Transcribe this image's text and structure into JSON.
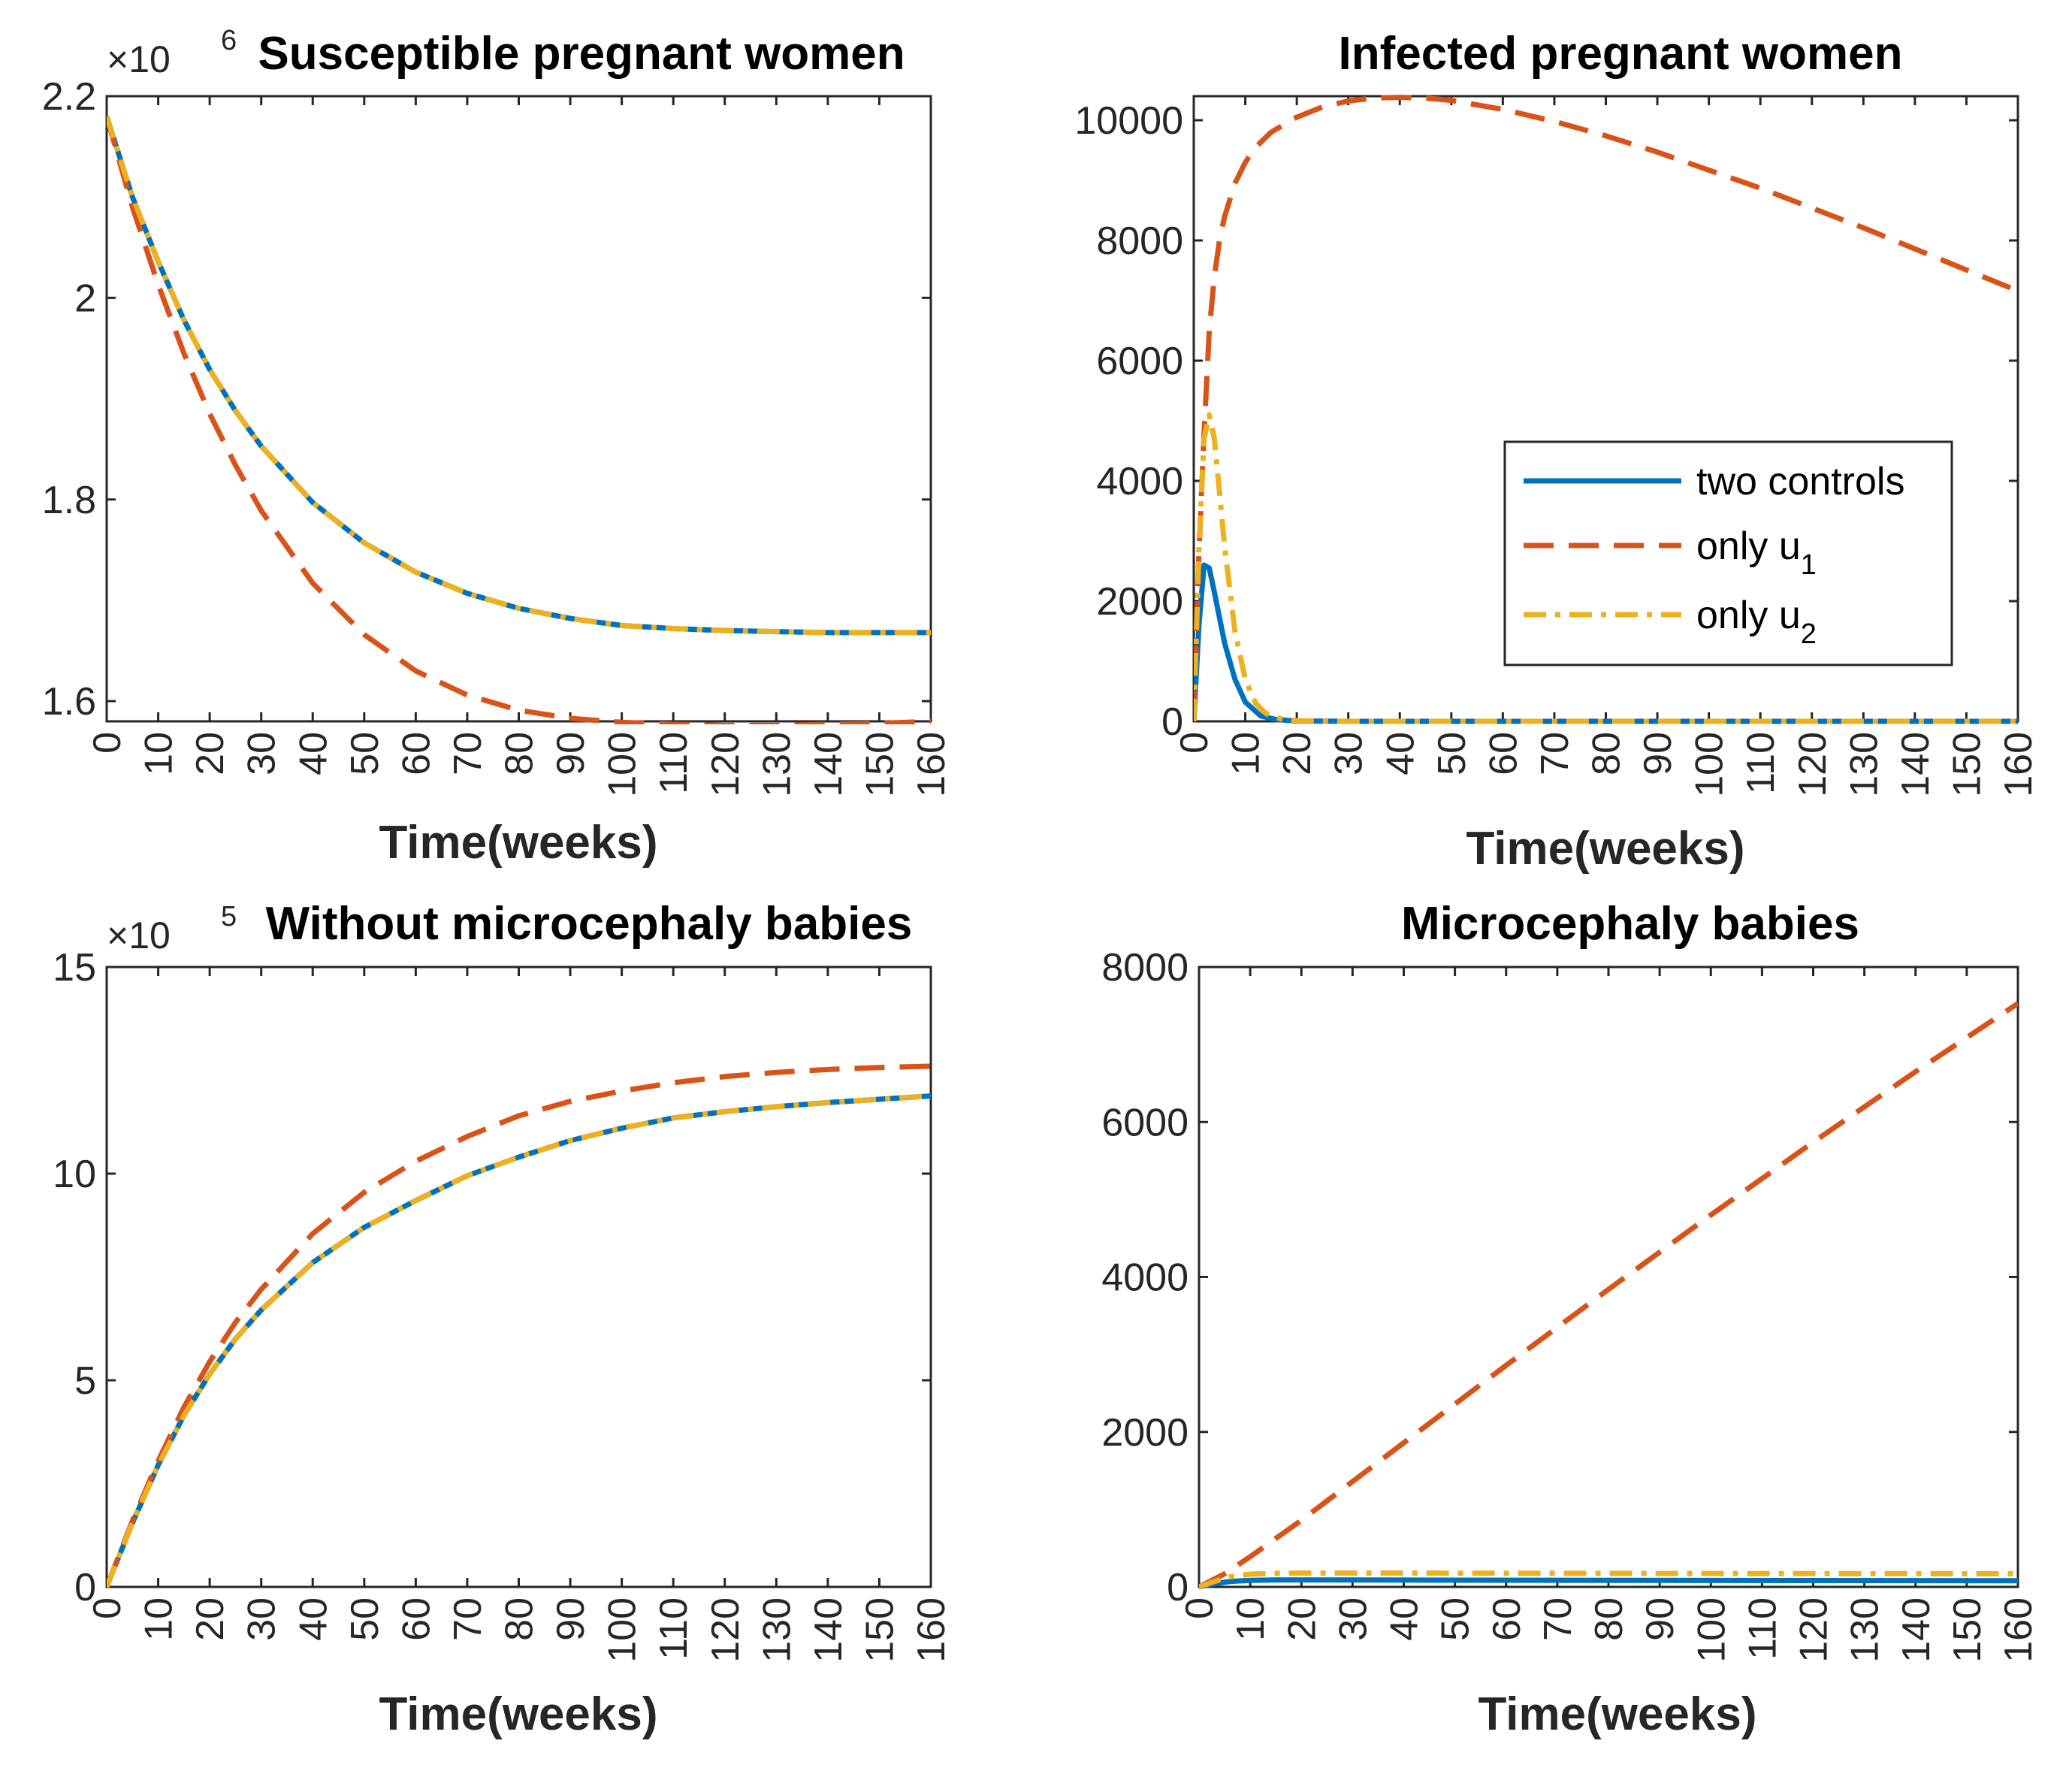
{
  "chart_data": [
    {
      "type": "line",
      "title": "Susceptible pregnant women",
      "xlabel": "Time(weeks)",
      "ylabel": "",
      "exponent_base": "×10",
      "exponent_power": "6",
      "xlim": [
        0,
        160
      ],
      "ylim": [
        1.58,
        2.2
      ],
      "xticks": [
        "0",
        "10",
        "20",
        "30",
        "40",
        "50",
        "60",
        "70",
        "80",
        "90",
        "100",
        "110",
        "120",
        "130",
        "140",
        "150",
        "160"
      ],
      "yticks": [
        "1.6",
        "1.8",
        "2",
        "2.2"
      ],
      "x": [
        0,
        5,
        10,
        15,
        20,
        25,
        30,
        40,
        50,
        60,
        70,
        80,
        90,
        100,
        110,
        120,
        130,
        140,
        150,
        160
      ],
      "series": [
        {
          "name": "two controls",
          "color": "#0072bd",
          "style": "solid",
          "values": [
            2.18,
            2.1,
            2.036,
            1.978,
            1.929,
            1.888,
            1.853,
            1.797,
            1.757,
            1.728,
            1.707,
            1.692,
            1.682,
            1.675,
            1.672,
            1.67,
            1.669,
            1.668,
            1.668,
            1.668
          ]
        },
        {
          "name": "only u1",
          "color": "#d95319",
          "style": "dash",
          "values": [
            2.18,
            2.09,
            2.013,
            1.945,
            1.885,
            1.834,
            1.789,
            1.717,
            1.666,
            1.63,
            1.606,
            1.591,
            1.583,
            1.579,
            1.577,
            1.576,
            1.576,
            1.577,
            1.578,
            1.58
          ]
        },
        {
          "name": "only u2",
          "color": "#edb120",
          "style": "dashdot",
          "values": [
            2.18,
            2.1,
            2.036,
            1.978,
            1.929,
            1.888,
            1.853,
            1.797,
            1.757,
            1.728,
            1.707,
            1.692,
            1.682,
            1.675,
            1.672,
            1.67,
            1.669,
            1.668,
            1.668,
            1.668
          ]
        }
      ]
    },
    {
      "type": "line",
      "title": "Infected pregnant women",
      "xlabel": "Time(weeks)",
      "ylabel": "",
      "xlim": [
        0,
        160
      ],
      "ylim": [
        0,
        10400
      ],
      "xticks": [
        "0",
        "10",
        "20",
        "30",
        "40",
        "50",
        "60",
        "70",
        "80",
        "90",
        "100",
        "110",
        "120",
        "130",
        "140",
        "150",
        "160"
      ],
      "yticks": [
        "0",
        "2000",
        "4000",
        "6000",
        "8000",
        "10000"
      ],
      "legend_position": "center-right",
      "legend": [
        {
          "label": "two controls",
          "sub": ""
        },
        {
          "label": "only u",
          "sub": "1"
        },
        {
          "label": "only u",
          "sub": "2"
        }
      ],
      "series": [
        {
          "name": "two controls",
          "color": "#0072bd",
          "style": "solid",
          "x": [
            0,
            1,
            2,
            3,
            4,
            6,
            8,
            10,
            13,
            16,
            20,
            30,
            50,
            80,
            120,
            160
          ],
          "values": [
            0,
            1600,
            2600,
            2550,
            2150,
            1300,
            700,
            320,
            90,
            30,
            5,
            0,
            0,
            0,
            0,
            0
          ]
        },
        {
          "name": "only u1",
          "color": "#d95319",
          "style": "dash",
          "x": [
            0,
            1,
            2,
            3,
            4,
            5,
            6,
            8,
            10,
            12,
            15,
            20,
            25,
            30,
            35,
            40,
            45,
            50,
            60,
            70,
            80,
            90,
            100,
            110,
            120,
            130,
            140,
            150,
            160
          ],
          "values": [
            0,
            2800,
            4800,
            6500,
            7400,
            8000,
            8400,
            8950,
            9300,
            9550,
            9800,
            10050,
            10220,
            10320,
            10370,
            10380,
            10370,
            10330,
            10180,
            9980,
            9740,
            9470,
            9170,
            8870,
            8540,
            8210,
            7860,
            7510,
            7160
          ]
        },
        {
          "name": "only u2",
          "color": "#edb120",
          "style": "dashdot",
          "x": [
            0,
            1,
            2,
            3,
            4,
            5,
            6,
            8,
            10,
            12,
            14,
            17,
            20,
            30,
            50,
            80,
            120,
            160
          ],
          "values": [
            0,
            2900,
            4700,
            5100,
            4700,
            3800,
            2900,
            1500,
            700,
            300,
            130,
            40,
            10,
            0,
            0,
            0,
            0,
            0
          ]
        }
      ]
    },
    {
      "type": "line",
      "title": "Without microcephaly babies",
      "xlabel": "Time(weeks)",
      "ylabel": "",
      "exponent_base": "×10",
      "exponent_power": "5",
      "xlim": [
        0,
        160
      ],
      "ylim": [
        0,
        15
      ],
      "xticks": [
        "0",
        "10",
        "20",
        "30",
        "40",
        "50",
        "60",
        "70",
        "80",
        "90",
        "100",
        "110",
        "120",
        "130",
        "140",
        "150",
        "160"
      ],
      "yticks": [
        "0",
        "5",
        "10",
        "15"
      ],
      "x": [
        0,
        5,
        10,
        15,
        20,
        25,
        30,
        40,
        50,
        60,
        70,
        80,
        90,
        100,
        110,
        120,
        130,
        140,
        150,
        160
      ],
      "series": [
        {
          "name": "two controls",
          "color": "#0072bd",
          "style": "solid",
          "values": [
            0,
            1.55,
            2.95,
            4.15,
            5.15,
            6.0,
            6.7,
            7.85,
            8.7,
            9.35,
            9.95,
            10.4,
            10.8,
            11.1,
            11.35,
            11.5,
            11.62,
            11.72,
            11.8,
            11.88
          ]
        },
        {
          "name": "only u1",
          "color": "#d95319",
          "style": "dash",
          "values": [
            0,
            1.6,
            3.05,
            4.35,
            5.45,
            6.4,
            7.2,
            8.55,
            9.55,
            10.3,
            10.9,
            11.4,
            11.75,
            12.0,
            12.2,
            12.35,
            12.45,
            12.52,
            12.57,
            12.6
          ]
        },
        {
          "name": "only u2",
          "color": "#edb120",
          "style": "dashdot",
          "values": [
            0,
            1.55,
            2.95,
            4.15,
            5.15,
            6.0,
            6.7,
            7.85,
            8.7,
            9.35,
            9.95,
            10.4,
            10.8,
            11.1,
            11.35,
            11.5,
            11.62,
            11.72,
            11.8,
            11.88
          ]
        }
      ]
    },
    {
      "type": "line",
      "title": "Microcephaly babies",
      "xlabel": "Time(weeks)",
      "ylabel": "",
      "xlim": [
        0,
        160
      ],
      "ylim": [
        0,
        8000
      ],
      "xticks": [
        "0",
        "10",
        "20",
        "30",
        "40",
        "50",
        "60",
        "70",
        "80",
        "90",
        "100",
        "110",
        "120",
        "130",
        "140",
        "150",
        "160"
      ],
      "yticks": [
        "0",
        "2000",
        "4000",
        "6000",
        "8000"
      ],
      "series": [
        {
          "name": "two controls",
          "color": "#0072bd",
          "style": "solid",
          "x": [
            0,
            3,
            6,
            10,
            15,
            20,
            40,
            80,
            120,
            160
          ],
          "values": [
            0,
            40,
            70,
            85,
            90,
            90,
            88,
            85,
            82,
            80
          ]
        },
        {
          "name": "only u1",
          "color": "#d95319",
          "style": "dash",
          "x": [
            0,
            5,
            10,
            20,
            40,
            60,
            80,
            100,
            120,
            140,
            160
          ],
          "values": [
            0,
            170,
            390,
            860,
            1860,
            2860,
            3840,
            4800,
            5740,
            6650,
            7530
          ]
        },
        {
          "name": "only u2",
          "color": "#edb120",
          "style": "dashdot",
          "x": [
            0,
            3,
            6,
            10,
            15,
            20,
            40,
            80,
            120,
            160
          ],
          "values": [
            0,
            70,
            130,
            165,
            175,
            178,
            178,
            175,
            172,
            170
          ]
        }
      ]
    }
  ]
}
